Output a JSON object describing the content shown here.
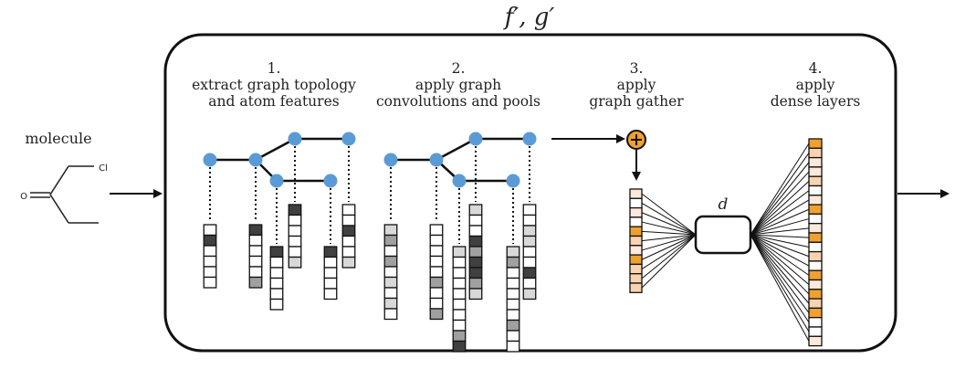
{
  "title": "f′, g′",
  "input_label": "molecule",
  "molecule_atoms": {
    "carbonyl_oxygen": "O",
    "chlorine": "Cl"
  },
  "steps": [
    {
      "number": "1.",
      "lines": [
        "extract graph topology",
        "and atom features"
      ]
    },
    {
      "number": "2.",
      "lines": [
        "apply graph",
        "convolutions and pools"
      ]
    },
    {
      "number": "3.",
      "lines": [
        "apply",
        "graph gather"
      ]
    },
    {
      "number": "4.",
      "lines": [
        "apply",
        "dense layers"
      ]
    }
  ],
  "bottleneck_label": "d",
  "colors": {
    "node": "#5b9bd5",
    "orange": "#f0a030",
    "orange_light": "#f9d3b0",
    "orange_pale": "#fde9dc",
    "dark_cell": "#404040",
    "mid_cell": "#a0a0a0",
    "light_cell": "#d8d8d8"
  }
}
